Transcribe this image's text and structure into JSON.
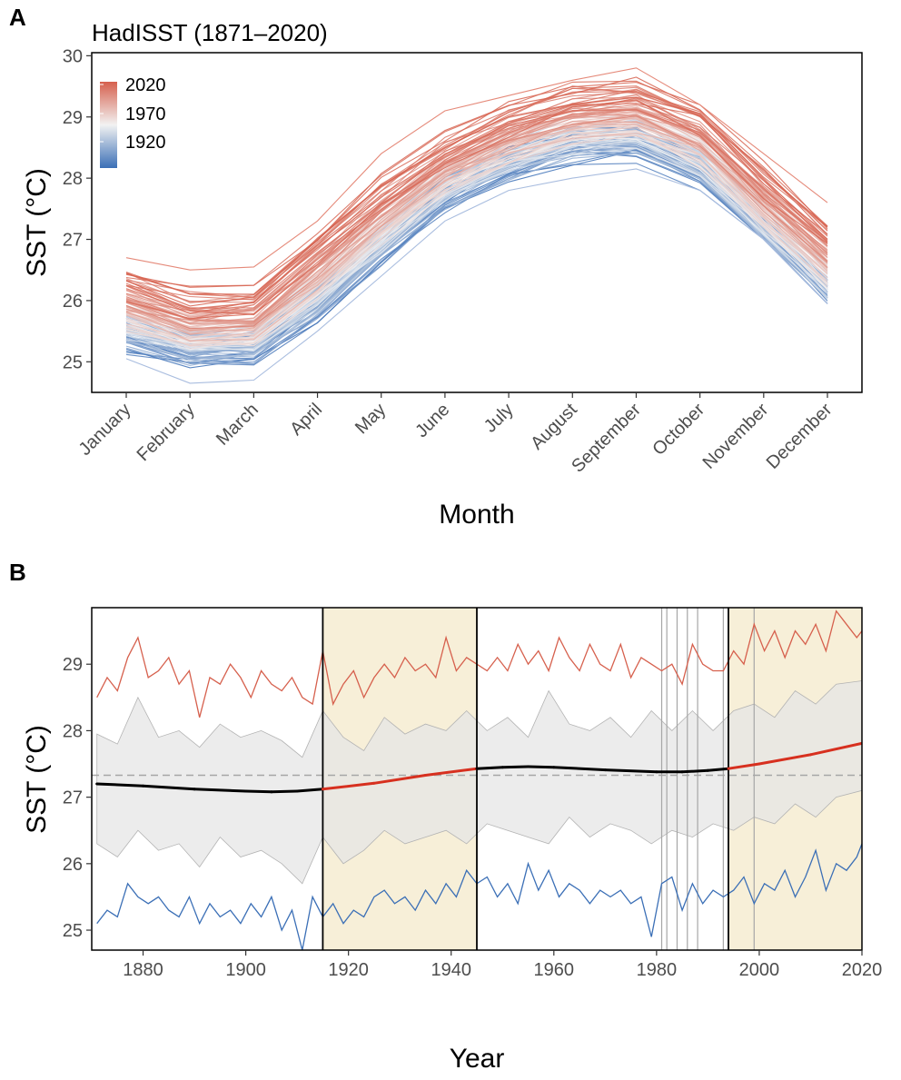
{
  "figure": {
    "panel_a_label": "A",
    "panel_b_label": "B"
  },
  "chart_data": [
    {
      "type": "line",
      "title": "HadISST (1871–2020)",
      "xlabel": "Month",
      "ylabel": "SST (°C)",
      "categories": [
        "January",
        "February",
        "March",
        "April",
        "May",
        "June",
        "July",
        "August",
        "September",
        "October",
        "November",
        "December"
      ],
      "ylim": [
        24.5,
        30.05
      ],
      "yticks": [
        25,
        26,
        27,
        28,
        29,
        30
      ],
      "grid": false,
      "legend": {
        "position": "top-left",
        "type": "colorbar",
        "labels": [
          "2020",
          "1970",
          "1920"
        ],
        "colors": {
          "low": "#3b6fb6",
          "mid": "#f2f2f2",
          "high": "#d6604d"
        }
      },
      "year_range": [
        1871,
        2020
      ],
      "series_summary": {
        "min_curve": [
          25.05,
          24.65,
          24.7,
          25.5,
          26.4,
          27.3,
          27.8,
          28.0,
          28.15,
          27.8,
          27.0,
          25.95
        ],
        "max_curve": [
          26.7,
          26.5,
          26.55,
          27.3,
          28.4,
          29.1,
          29.35,
          29.6,
          29.8,
          29.2,
          28.4,
          27.6
        ],
        "early_mean": [
          25.4,
          25.15,
          25.2,
          25.9,
          26.8,
          27.7,
          28.2,
          28.5,
          28.55,
          28.1,
          27.1,
          26.1
        ],
        "late_mean": [
          26.3,
          25.95,
          26.0,
          26.9,
          27.8,
          28.5,
          29.0,
          29.3,
          29.4,
          29.0,
          28.0,
          27.1
        ]
      }
    },
    {
      "type": "line",
      "title": "",
      "xlabel": "Year",
      "ylabel": "SST (°C)",
      "xlim": [
        1870,
        2020
      ],
      "ylim": [
        24.7,
        29.85
      ],
      "xticks": [
        1880,
        1900,
        1920,
        1940,
        1960,
        1980,
        2000,
        2020
      ],
      "yticks": [
        25,
        26,
        27,
        28,
        29
      ],
      "grid": false,
      "reference_line": 27.33,
      "breakpoints": [
        1915,
        1945,
        1994
      ],
      "shaded_periods": [
        [
          1915,
          1945
        ],
        [
          1994,
          2020
        ]
      ],
      "shade_color": "#f7efd8",
      "event_lines": [
        1981,
        1982,
        1984,
        1986,
        1988,
        1993,
        1999
      ],
      "colors": {
        "max": "#d6604d",
        "min": "#3b6fb6",
        "band": "#e6e6e6",
        "trend_stable": "#000000",
        "trend_warming": "#d7301f",
        "reference": "#a6a6a6"
      },
      "series": [
        {
          "key": "max",
          "x": [
            1871,
            1873,
            1875,
            1877,
            1879,
            1881,
            1883,
            1885,
            1887,
            1889,
            1891,
            1893,
            1895,
            1897,
            1899,
            1901,
            1903,
            1905,
            1907,
            1909,
            1911,
            1913,
            1915,
            1917,
            1919,
            1921,
            1923,
            1925,
            1927,
            1929,
            1931,
            1933,
            1935,
            1937,
            1939,
            1941,
            1943,
            1945,
            1947,
            1949,
            1951,
            1953,
            1955,
            1957,
            1959,
            1961,
            1963,
            1965,
            1967,
            1969,
            1971,
            1973,
            1975,
            1977,
            1979,
            1981,
            1983,
            1985,
            1987,
            1989,
            1991,
            1993,
            1995,
            1997,
            1999,
            2001,
            2003,
            2005,
            2007,
            2009,
            2011,
            2013,
            2015,
            2017,
            2019,
            2020
          ],
          "y": [
            28.5,
            28.8,
            28.6,
            29.1,
            29.4,
            28.8,
            28.9,
            29.1,
            28.7,
            28.9,
            28.2,
            28.8,
            28.7,
            29.0,
            28.8,
            28.5,
            28.9,
            28.7,
            28.6,
            28.8,
            28.5,
            28.4,
            29.2,
            28.4,
            28.7,
            28.9,
            28.5,
            28.8,
            29.0,
            28.8,
            29.1,
            28.9,
            29.0,
            28.8,
            29.4,
            28.9,
            29.1,
            29.0,
            28.9,
            29.1,
            28.9,
            29.3,
            29.0,
            29.2,
            28.9,
            29.4,
            29.1,
            28.9,
            29.3,
            29.0,
            28.9,
            29.3,
            28.8,
            29.1,
            29.0,
            28.9,
            29.0,
            28.7,
            29.3,
            29.0,
            28.9,
            28.9,
            29.2,
            29.0,
            29.6,
            29.2,
            29.5,
            29.1,
            29.5,
            29.3,
            29.6,
            29.2,
            29.8,
            29.6,
            29.4,
            29.5
          ]
        },
        {
          "key": "band_upper",
          "x": [
            1871,
            1875,
            1879,
            1883,
            1887,
            1891,
            1895,
            1899,
            1903,
            1907,
            1911,
            1915,
            1919,
            1923,
            1927,
            1931,
            1935,
            1939,
            1943,
            1947,
            1951,
            1955,
            1959,
            1963,
            1967,
            1971,
            1975,
            1979,
            1983,
            1987,
            1991,
            1995,
            1999,
            2003,
            2007,
            2011,
            2015,
            2020
          ],
          "y": [
            27.95,
            27.8,
            28.5,
            27.9,
            28.0,
            27.75,
            28.1,
            27.9,
            28.0,
            27.85,
            27.6,
            28.3,
            27.9,
            27.7,
            28.2,
            27.95,
            28.1,
            28.0,
            28.3,
            28.0,
            28.2,
            27.9,
            28.6,
            28.1,
            28.0,
            28.2,
            27.9,
            28.3,
            28.0,
            28.3,
            28.0,
            28.3,
            28.4,
            28.2,
            28.6,
            28.4,
            28.7,
            28.75
          ]
        },
        {
          "key": "band_lower",
          "x": [
            1871,
            1875,
            1879,
            1883,
            1887,
            1891,
            1895,
            1899,
            1903,
            1907,
            1911,
            1915,
            1919,
            1923,
            1927,
            1931,
            1935,
            1939,
            1943,
            1947,
            1951,
            1955,
            1959,
            1963,
            1967,
            1971,
            1975,
            1979,
            1983,
            1987,
            1991,
            1995,
            1999,
            2003,
            2007,
            2011,
            2015,
            2020
          ],
          "y": [
            26.3,
            26.1,
            26.5,
            26.2,
            26.3,
            25.95,
            26.4,
            26.1,
            26.2,
            26.0,
            25.7,
            26.4,
            26.0,
            26.2,
            26.5,
            26.3,
            26.4,
            26.5,
            26.3,
            26.6,
            26.5,
            26.4,
            26.3,
            26.7,
            26.4,
            26.6,
            26.5,
            26.3,
            26.5,
            26.4,
            26.6,
            26.5,
            26.7,
            26.6,
            26.9,
            26.7,
            27.0,
            27.1
          ]
        },
        {
          "key": "min",
          "x": [
            1871,
            1873,
            1875,
            1877,
            1879,
            1881,
            1883,
            1885,
            1887,
            1889,
            1891,
            1893,
            1895,
            1897,
            1899,
            1901,
            1903,
            1905,
            1907,
            1909,
            1911,
            1913,
            1915,
            1917,
            1919,
            1921,
            1923,
            1925,
            1927,
            1929,
            1931,
            1933,
            1935,
            1937,
            1939,
            1941,
            1943,
            1945,
            1947,
            1949,
            1951,
            1953,
            1955,
            1957,
            1959,
            1961,
            1963,
            1965,
            1967,
            1969,
            1971,
            1973,
            1975,
            1977,
            1979,
            1981,
            1983,
            1985,
            1987,
            1989,
            1991,
            1993,
            1995,
            1997,
            1999,
            2001,
            2003,
            2005,
            2007,
            2009,
            2011,
            2013,
            2015,
            2017,
            2019,
            2020
          ],
          "y": [
            25.1,
            25.3,
            25.2,
            25.7,
            25.5,
            25.4,
            25.5,
            25.3,
            25.2,
            25.5,
            25.1,
            25.4,
            25.2,
            25.3,
            25.1,
            25.4,
            25.2,
            25.5,
            25.0,
            25.3,
            24.7,
            25.5,
            25.2,
            25.4,
            25.1,
            25.3,
            25.2,
            25.5,
            25.6,
            25.4,
            25.5,
            25.3,
            25.6,
            25.4,
            25.7,
            25.5,
            25.9,
            25.7,
            25.8,
            25.5,
            25.7,
            25.4,
            26.0,
            25.6,
            25.9,
            25.5,
            25.7,
            25.6,
            25.4,
            25.6,
            25.5,
            25.6,
            25.4,
            25.5,
            24.9,
            25.7,
            25.8,
            25.3,
            25.7,
            25.4,
            25.6,
            25.5,
            25.6,
            25.8,
            25.4,
            25.7,
            25.6,
            25.9,
            25.5,
            25.8,
            26.2,
            25.6,
            26.0,
            25.9,
            26.1,
            26.3
          ]
        },
        {
          "key": "trend",
          "x": [
            1871,
            1880,
            1890,
            1900,
            1905,
            1910,
            1915,
            1925,
            1935,
            1945,
            1950,
            1955,
            1960,
            1970,
            1980,
            1985,
            1990,
            1994,
            2000,
            2010,
            2020
          ],
          "y": [
            27.2,
            27.17,
            27.12,
            27.09,
            27.08,
            27.09,
            27.12,
            27.21,
            27.33,
            27.43,
            27.45,
            27.46,
            27.45,
            27.41,
            27.38,
            27.38,
            27.4,
            27.43,
            27.5,
            27.64,
            27.81
          ]
        }
      ]
    }
  ]
}
